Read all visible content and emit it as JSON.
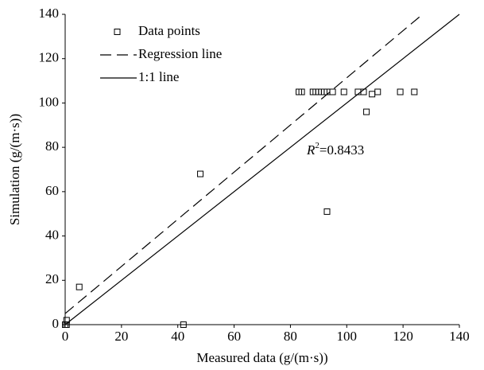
{
  "chart_data": {
    "type": "scatter",
    "xlabel": "Measured data (g/(m·s))",
    "ylabel": "Simulation (g/(m·s))",
    "annotation": [
      "R",
      "2",
      "=0.8433"
    ],
    "xlim": [
      0,
      140
    ],
    "ylim": [
      0,
      140
    ],
    "xticks": [
      0,
      20,
      40,
      60,
      80,
      100,
      120,
      140
    ],
    "yticks": [
      0,
      20,
      40,
      60,
      80,
      100,
      120,
      140
    ],
    "grid": false,
    "legend": "upper left",
    "series": [
      {
        "name": "Data points",
        "style": "marker",
        "color": "#000000",
        "x": [
          0,
          0.5,
          0.5,
          5,
          42,
          48,
          83,
          84,
          88,
          89,
          90,
          91,
          92,
          93,
          95,
          99,
          104,
          106,
          109,
          111,
          119,
          124,
          107,
          93
        ],
        "values": [
          0,
          0,
          2,
          17,
          0,
          68,
          105,
          105,
          105,
          105,
          105,
          105,
          105,
          105,
          105,
          105,
          105,
          105,
          104,
          105,
          105,
          105,
          96,
          51
        ]
      },
      {
        "name": "Regression line",
        "style": "dashed",
        "color": "#000000",
        "x": [
          0,
          126
        ],
        "values": [
          5,
          139
        ]
      },
      {
        "name": "1:1 line",
        "style": "solid",
        "color": "#000000",
        "x": [
          0,
          140
        ],
        "values": [
          0,
          140
        ]
      }
    ]
  }
}
